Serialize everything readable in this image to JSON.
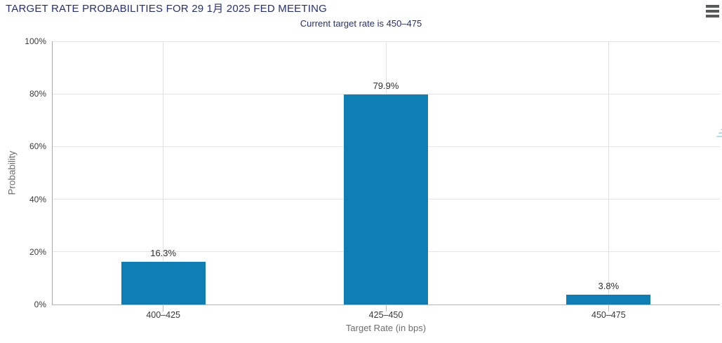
{
  "chart_data": {
    "type": "bar",
    "title": "TARGET RATE PROBABILITIES FOR 29 1月 2025 FED MEETING",
    "subtitle": "Current target rate is 450–475",
    "categories": [
      "400–425",
      "425–450",
      "450–475"
    ],
    "values": [
      16.3,
      79.9,
      3.8
    ],
    "value_labels": [
      "16.3%",
      "79.9%",
      "3.8%"
    ],
    "xlabel": "Target Rate (in bps)",
    "ylabel": "Probability",
    "ylim": [
      0,
      100
    ],
    "ytick_labels": [
      "0%",
      "20%",
      "40%",
      "60%",
      "80%",
      "100%"
    ],
    "grid": true,
    "legend": "none",
    "watermark": "Q",
    "colors": {
      "bar": "#0f7eb4",
      "title": "#233076",
      "subtitle": "#233076",
      "tick_label": "#3a3a3a",
      "axis_title": "#6e6e6e",
      "gridline": "#e2e2e2",
      "axis_line": "#a6a6a6",
      "data_label": "#2e2e2e",
      "menu_icon": "#58595b",
      "watermark_q": "#d5d5d5",
      "watermark_dashes": "#a5d8ec"
    }
  },
  "controls": {
    "menu_icon": "hamburger-icon"
  }
}
